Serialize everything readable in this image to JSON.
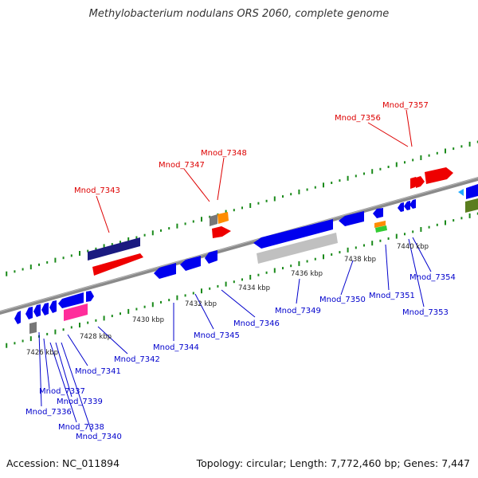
{
  "title": "Methylobacterium nodulans ORS 2060, complete genome",
  "footer": {
    "accession": "Accession: NC_011894",
    "summary": "Topology: circular; Length: 7,772,460 bp; Genes: 7,447"
  },
  "colors": {
    "backbone": "#888888",
    "tick": "#1a8a1a",
    "blue": "#0000ee",
    "navy": "#0a0a6e",
    "red": "#ee0000",
    "gray": "#c0c0c0",
    "olive": "#5a7d1e",
    "orange": "#ff8c00",
    "magenta": "#ff2d9b",
    "label_blue": "#0000cc",
    "label_red": "#dd0000"
  },
  "scale_labels": [
    "7426 kbp",
    "7428 kbp",
    "7430 kbp",
    "7432 kbp",
    "7434 kbp",
    "7436 kbp",
    "7438 kbp",
    "7440 kbp"
  ],
  "genes_below": [
    "Mnod_7336",
    "Mnod_7337",
    "Mnod_7338",
    "Mnod_7339",
    "Mnod_7340",
    "Mnod_7341",
    "Mnod_7342",
    "Mnod_7344",
    "Mnod_7345",
    "Mnod_7346",
    "Mnod_7349",
    "Mnod_7350",
    "Mnod_7351",
    "Mnod_7353",
    "Mnod_7354"
  ],
  "genes_above": [
    "Mnod_7343",
    "Mnod_7347",
    "Mnod_7348",
    "Mnod_7356",
    "Mnod_7357"
  ]
}
